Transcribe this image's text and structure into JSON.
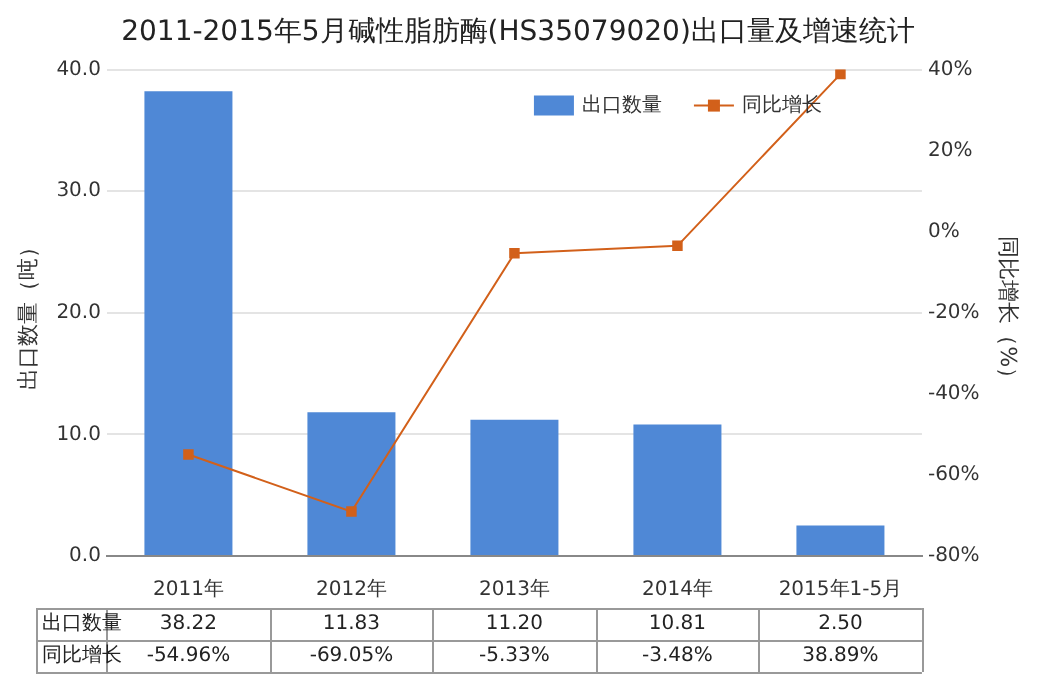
{
  "chart_data": {
    "type": "bar",
    "title": "2011-2015年5月碱性脂肪酶(HS35079020)出口量及增速统计",
    "ylabel": "出口数量（吨）",
    "y2label": "同比增长（%）",
    "categories": [
      "2011年",
      "2012年",
      "2013年",
      "2014年",
      "2015年1-5月"
    ],
    "series": [
      {
        "name": "出口数量",
        "color": "#4f88d6",
        "values": [
          38.22,
          11.83,
          11.2,
          10.81,
          2.5
        ],
        "value_labels": [
          "38.22",
          "11.83",
          "11.20",
          "10.81",
          "2.50"
        ]
      },
      {
        "name": "同比增长",
        "type": "line",
        "axis": "y2",
        "color": "#d2601a",
        "marker": "square",
        "values": [
          -54.96,
          -69.05,
          -5.33,
          -3.48,
          38.89
        ],
        "value_labels": [
          "-54.96%",
          "-69.05%",
          "-5.33%",
          "-3.48%",
          "38.89%"
        ]
      }
    ],
    "ylim": [
      0,
      40
    ],
    "yticks": [
      {
        "value": 0,
        "label": "0.0"
      },
      {
        "value": 10,
        "label": "10.0"
      },
      {
        "value": 20,
        "label": "20.0"
      },
      {
        "value": 30,
        "label": "30.0"
      },
      {
        "value": 40,
        "label": "40.0"
      }
    ],
    "y2lim": [
      -80,
      40
    ],
    "y2ticks": [
      {
        "value": -80,
        "label": "-80%"
      },
      {
        "value": -60,
        "label": "-60%"
      },
      {
        "value": -40,
        "label": "-40%"
      },
      {
        "value": -20,
        "label": "-20%"
      },
      {
        "value": 0,
        "label": "0%"
      },
      {
        "value": 20,
        "label": "20%"
      },
      {
        "value": 40,
        "label": "40%"
      }
    ],
    "grid": "y",
    "legend": "top right"
  }
}
